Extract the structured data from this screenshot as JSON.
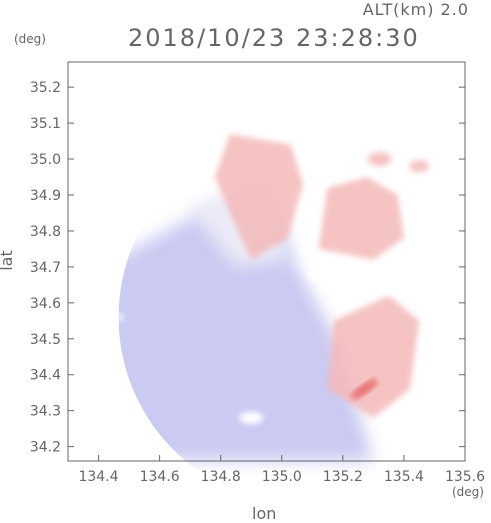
{
  "header": {
    "altitude_label": "ALT(km)",
    "altitude_value": "2.0",
    "timestamp": "2018/10/23 23:28:30"
  },
  "chart_data": {
    "type": "heatmap",
    "title": "2018/10/23 23:28:30",
    "xlabel": "lon",
    "ylabel": "lat",
    "x_unit": "(deg)",
    "y_unit": "(deg)",
    "xlim": [
      134.3,
      135.6
    ],
    "ylim": [
      34.16,
      35.27
    ],
    "x_ticks": [
      "134.4",
      "134.6",
      "134.8",
      "135.0",
      "135.2",
      "135.4",
      "135.6"
    ],
    "y_ticks": [
      "34.2",
      "34.3",
      "34.4",
      "34.5",
      "34.6",
      "34.7",
      "34.8",
      "34.9",
      "35.0",
      "35.1",
      "35.2"
    ],
    "radar_center": [
      135.08,
      34.56
    ],
    "radar_range_deg": 0.64,
    "colors": {
      "approaching": "#b8b8ee",
      "receding": "#f5b8b8",
      "strong_receding": "#e86a6a",
      "neutral": "#ebebf7"
    },
    "regions": [
      {
        "kind": "negative",
        "description_level": "weak-approaching",
        "lon": [
          134.3,
          135.0
        ],
        "lat": [
          34.16,
          34.85
        ]
      },
      {
        "kind": "positive",
        "description_level": "weak-receding",
        "lon": [
          134.85,
          135.5
        ],
        "lat": [
          34.7,
          35.08
        ]
      },
      {
        "kind": "positive",
        "description_level": "strong-receding",
        "lon": [
          135.22,
          135.32
        ],
        "lat": [
          34.3,
          34.4
        ]
      }
    ],
    "grid": false,
    "legend": "none"
  }
}
